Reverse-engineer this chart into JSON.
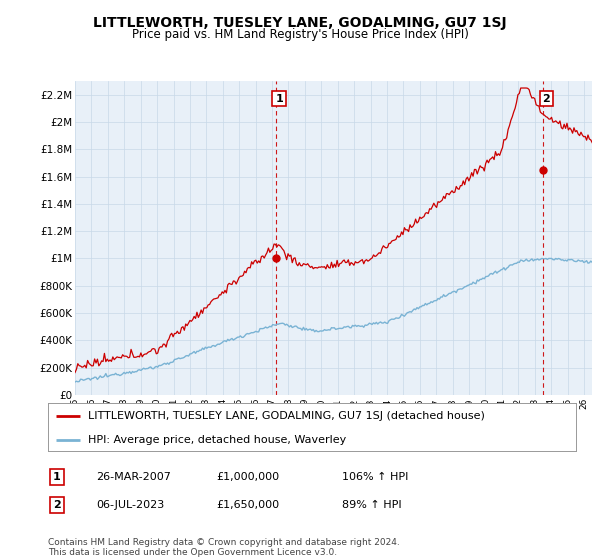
{
  "title": "LITTLEWORTH, TUESLEY LANE, GODALMING, GU7 1SJ",
  "subtitle": "Price paid vs. HM Land Registry's House Price Index (HPI)",
  "ylabel_ticks": [
    "£0",
    "£200K",
    "£400K",
    "£600K",
    "£800K",
    "£1M",
    "£1.2M",
    "£1.4M",
    "£1.6M",
    "£1.8M",
    "£2M",
    "£2.2M"
  ],
  "ytick_values": [
    0,
    200000,
    400000,
    600000,
    800000,
    1000000,
    1200000,
    1400000,
    1600000,
    1800000,
    2000000,
    2200000
  ],
  "ylim": [
    0,
    2300000
  ],
  "xlim_start": 1995.0,
  "xlim_end": 2026.5,
  "hpi_color": "#7ab3d4",
  "price_color": "#cc0000",
  "chart_bg": "#e8f0f8",
  "vline_color": "#cc0000",
  "vline_style": "--",
  "point1_x": 2007.23,
  "point1_y": 1000000,
  "point2_x": 2023.51,
  "point2_y": 1650000,
  "point1_label": "1",
  "point2_label": "2",
  "legend_line1": "LITTLEWORTH, TUESLEY LANE, GODALMING, GU7 1SJ (detached house)",
  "legend_line2": "HPI: Average price, detached house, Waverley",
  "table_row1_num": "1",
  "table_row1_date": "26-MAR-2007",
  "table_row1_price": "£1,000,000",
  "table_row1_hpi": "106% ↑ HPI",
  "table_row2_num": "2",
  "table_row2_date": "06-JUL-2023",
  "table_row2_price": "£1,650,000",
  "table_row2_hpi": "89% ↑ HPI",
  "footer": "Contains HM Land Registry data © Crown copyright and database right 2024.\nThis data is licensed under the Open Government Licence v3.0.",
  "bg_color": "#ffffff",
  "grid_color": "#c8d8e8",
  "title_fontsize": 10,
  "subtitle_fontsize": 8.5,
  "axis_fontsize": 7.5,
  "legend_fontsize": 8,
  "table_fontsize": 8,
  "footer_fontsize": 6.5
}
